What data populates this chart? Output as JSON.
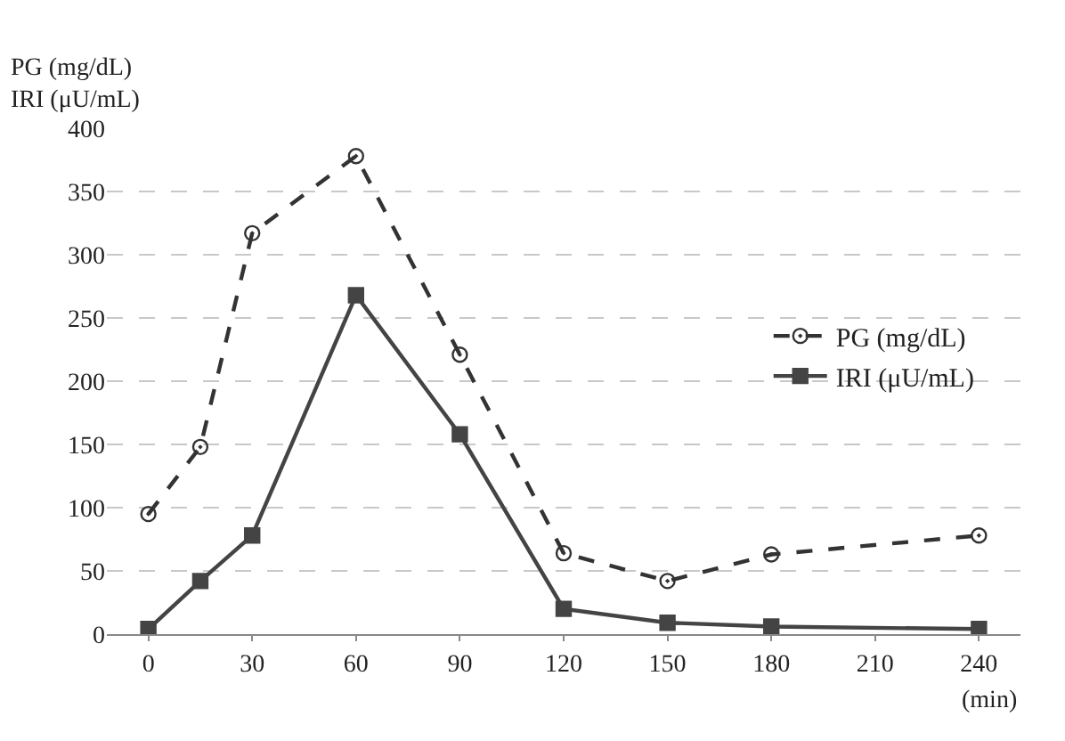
{
  "chart_data": {
    "type": "line",
    "ylabel": "PG (mg/dL)\nIRI (μU/mL)",
    "xlabel": "(min)",
    "x": [
      0,
      15,
      30,
      60,
      90,
      120,
      150,
      180,
      240
    ],
    "series": [
      {
        "name": "PG (mg/dL)",
        "color": "#333333",
        "marker": "circle",
        "line_style": "dashed",
        "values": [
          95,
          148,
          317,
          378,
          221,
          64,
          42,
          63,
          78
        ]
      },
      {
        "name": "IRI (μU/mL)",
        "color": "#444444",
        "marker": "square",
        "line_style": "solid",
        "values": [
          4,
          42,
          78,
          268,
          158,
          20,
          9,
          6,
          4
        ]
      }
    ],
    "xlim": [
      -12,
      252
    ],
    "xticks": [
      0,
      30,
      60,
      90,
      120,
      150,
      180,
      210,
      240
    ],
    "ylim": [
      0,
      400
    ],
    "yticks": [
      0,
      50,
      100,
      150,
      200,
      250,
      300,
      350,
      400
    ],
    "grid": "y",
    "legend": "right"
  }
}
